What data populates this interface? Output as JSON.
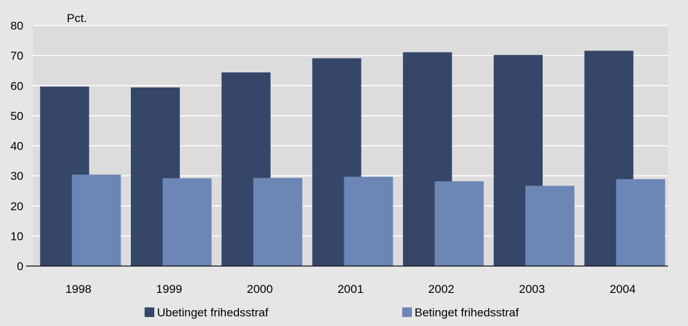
{
  "chart_data": {
    "type": "bar",
    "unit": "Pct.",
    "categories": [
      "1998",
      "1999",
      "2000",
      "2001",
      "2002",
      "2003",
      "2004"
    ],
    "series": [
      {
        "name": "Ubetinget frihedsstraf",
        "color": "#354669",
        "values": [
          59.7,
          59.4,
          64.4,
          69.1,
          71.1,
          70.2,
          71.6
        ]
      },
      {
        "name": "Betinget frihedsstraf",
        "color": "#6c87b6",
        "values": [
          30.4,
          29.2,
          29.3,
          29.7,
          28.2,
          26.7,
          28.9
        ]
      }
    ],
    "ylim": [
      0,
      80
    ],
    "yticks": [
      0,
      10,
      20,
      30,
      40,
      50,
      60,
      70,
      80
    ],
    "grid": true,
    "legend_position": "bottom",
    "background_color": "#e6e6e6",
    "plot_background_color": "#dcdcdc",
    "gridline_color": "#ffffff"
  }
}
